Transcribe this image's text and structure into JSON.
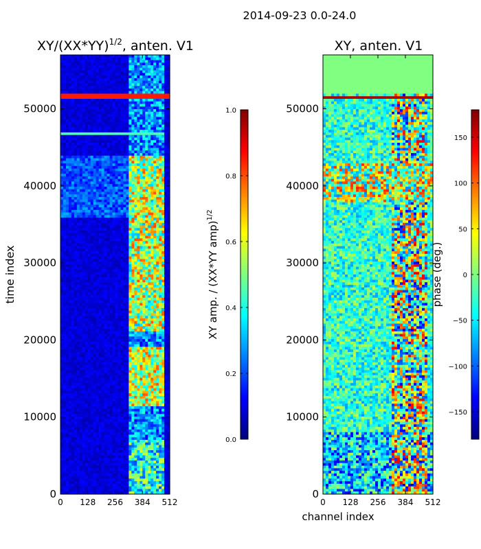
{
  "suptitle": "2014-09-23 0.0-24.0",
  "chart_data": [
    {
      "type": "heatmap",
      "title_main": "XY/(XX*YY)",
      "title_exp": "1/2",
      "title_suffix": ", anten. V1",
      "xlabel": "",
      "ylabel": "time index",
      "xlim": [
        0,
        512
      ],
      "ylim": [
        0,
        57000
      ],
      "xticks": [
        0,
        128,
        256,
        384,
        512
      ],
      "yticks": [
        0,
        10000,
        20000,
        30000,
        40000,
        50000
      ],
      "colormap": "jet",
      "colorbar": {
        "label_main": "XY amp. / (XX*YY amp)",
        "label_exp": "1/2",
        "range": [
          0.0,
          1.0
        ],
        "ticks": [
          "0.0",
          "0.2",
          "0.4",
          "0.6",
          "0.8",
          "1.0"
        ]
      }
    },
    {
      "type": "heatmap",
      "title_main": "XY, anten. V1",
      "xlabel": "channel index",
      "ylabel": "",
      "xlim": [
        0,
        512
      ],
      "ylim": [
        0,
        57000
      ],
      "xticks": [
        0,
        128,
        256,
        384,
        512
      ],
      "yticks": [
        0,
        10000,
        20000,
        30000,
        40000,
        50000
      ],
      "colormap": "jet",
      "colorbar": {
        "label_main": "phase (deg.)",
        "range": [
          -180,
          180
        ],
        "ticks": [
          "−150",
          "−100",
          "−50",
          "0",
          "50",
          "100",
          "150"
        ]
      }
    }
  ]
}
